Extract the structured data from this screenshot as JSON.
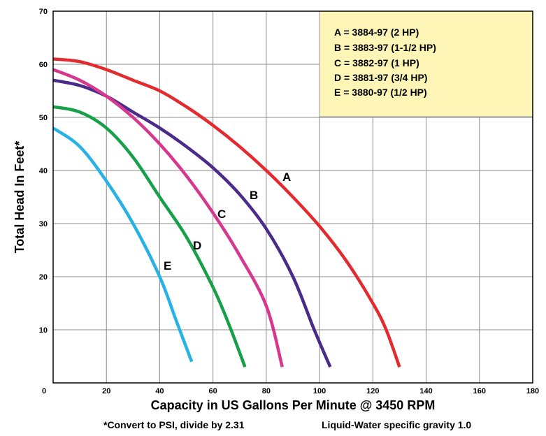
{
  "chart_data": {
    "type": "line",
    "title": "",
    "xlabel": "Capacity in US Gallons Per Minute @ 3450 RPM",
    "ylabel": "Total Head In Feet*",
    "xlim": [
      0,
      180
    ],
    "ylim": [
      0,
      70
    ],
    "x_ticks": [
      "0",
      "20",
      "40",
      "60",
      "80",
      "100",
      "120",
      "140",
      "160",
      "180"
    ],
    "y_ticks": [
      "10",
      "20",
      "30",
      "40",
      "50",
      "60",
      "70"
    ],
    "grid": true,
    "legend_placement": "top-right",
    "legend": [
      "A = 3884-97 (2 HP)",
      "B = 3883-97 (1-1/2 HP)",
      "C = 3882-97 (1 HP)",
      "D = 3881-97 (3/4 HP)",
      "E = 3880-97 (1/2 HP)"
    ],
    "footnotes": {
      "psi": "*Convert to PSI, divide by 2.31",
      "gravity": "Liquid-Water specific gravity 1.0"
    },
    "series": [
      {
        "label": "A",
        "color": "#e32b2f",
        "points": [
          [
            0,
            61
          ],
          [
            10,
            60.5
          ],
          [
            20,
            59
          ],
          [
            30,
            57
          ],
          [
            40,
            55
          ],
          [
            50,
            52
          ],
          [
            60,
            48.5
          ],
          [
            70,
            44.5
          ],
          [
            80,
            40
          ],
          [
            90,
            35
          ],
          [
            100,
            29.5
          ],
          [
            110,
            23
          ],
          [
            120,
            15
          ],
          [
            125,
            10
          ],
          [
            130,
            3
          ]
        ]
      },
      {
        "label": "B",
        "color": "#4b2b8a",
        "points": [
          [
            0,
            57
          ],
          [
            10,
            56
          ],
          [
            20,
            54
          ],
          [
            30,
            51
          ],
          [
            40,
            48
          ],
          [
            50,
            44.5
          ],
          [
            60,
            40.5
          ],
          [
            70,
            35.5
          ],
          [
            80,
            29
          ],
          [
            90,
            20
          ],
          [
            98,
            10
          ],
          [
            104,
            3
          ]
        ]
      },
      {
        "label": "C",
        "color": "#d6378f",
        "points": [
          [
            0,
            59
          ],
          [
            10,
            57
          ],
          [
            20,
            54
          ],
          [
            30,
            50
          ],
          [
            40,
            45
          ],
          [
            50,
            39
          ],
          [
            60,
            32
          ],
          [
            70,
            24
          ],
          [
            80,
            14.5
          ],
          [
            86,
            3
          ]
        ]
      },
      {
        "label": "D",
        "color": "#16a04a",
        "points": [
          [
            0,
            52
          ],
          [
            10,
            51
          ],
          [
            20,
            48
          ],
          [
            30,
            42.5
          ],
          [
            40,
            35
          ],
          [
            50,
            27.5
          ],
          [
            60,
            18
          ],
          [
            66,
            11
          ],
          [
            72,
            3
          ]
        ]
      },
      {
        "label": "E",
        "color": "#27b2e6",
        "points": [
          [
            0,
            48
          ],
          [
            10,
            44.5
          ],
          [
            20,
            38
          ],
          [
            30,
            30
          ],
          [
            40,
            20
          ],
          [
            46,
            12
          ],
          [
            52,
            4
          ]
        ]
      }
    ]
  }
}
